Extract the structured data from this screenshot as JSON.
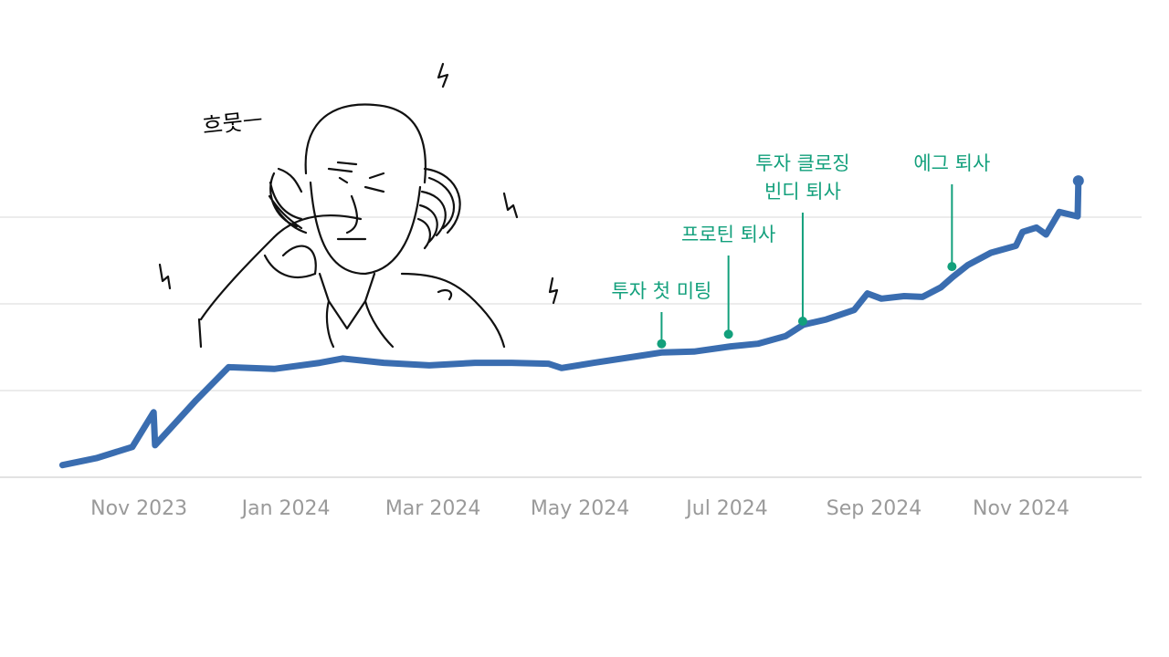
{
  "chart_data": {
    "type": "line",
    "x": [
      -1.04,
      -0.58,
      -0.09,
      0.2,
      0.22,
      0.78,
      1.22,
      1.84,
      2.46,
      2.77,
      3.33,
      3.95,
      4.57,
      5.07,
      5.57,
      5.75,
      6.19,
      6.81,
      7.12,
      7.55,
      8.05,
      8.42,
      8.8,
      9.04,
      9.35,
      9.73,
      9.91,
      10.1,
      10.41,
      10.66,
      10.91,
      11.07,
      11.28,
      11.59,
      11.93,
      12.02,
      12.21,
      12.34,
      12.52,
      12.77,
      12.78
    ],
    "series": [
      {
        "color": "#3a6db0",
        "values": [
          0.14,
          0.22,
          0.35,
          0.75,
          0.37,
          0.89,
          1.27,
          1.25,
          1.32,
          1.37,
          1.32,
          1.29,
          1.32,
          1.32,
          1.31,
          1.26,
          1.32,
          1.4,
          1.44,
          1.45,
          1.51,
          1.54,
          1.63,
          1.76,
          1.82,
          1.93,
          2.12,
          2.06,
          2.09,
          2.08,
          2.19,
          2.31,
          2.45,
          2.59,
          2.67,
          2.83,
          2.88,
          2.8,
          3.06,
          3.01,
          3.42
        ]
      }
    ],
    "xlim": [
      -1.89,
      13.64
    ],
    "xticks": [
      {
        "value": 0,
        "label": "Nov 2023"
      },
      {
        "value": 2,
        "label": "Jan 2024"
      },
      {
        "value": 4,
        "label": "Mar 2024"
      },
      {
        "value": 6,
        "label": "May 2024"
      },
      {
        "value": 8,
        "label": "Jul 2024"
      },
      {
        "value": 10,
        "label": "Sep 2024"
      },
      {
        "value": 12,
        "label": "Nov 2024"
      }
    ],
    "ylim": [
      0,
      5.2
    ],
    "yticks": [
      0,
      1,
      2,
      3
    ],
    "grid": true,
    "annotations": [
      {
        "x": 7.11,
        "y": 1.54,
        "text": [
          "투자 첫 미팅"
        ]
      },
      {
        "x": 8.02,
        "y": 1.65,
        "text": [
          "프로틴 퇴사"
        ]
      },
      {
        "x": 9.03,
        "y": 1.8,
        "text": [
          "투자 클로징",
          "빈디 퇴사"
        ]
      },
      {
        "x": 11.06,
        "y": 2.43,
        "text": [
          "에그 퇴사"
        ]
      }
    ],
    "annotation_color": "#13a07c",
    "illustration_caption": "흐뭇ㅡ"
  }
}
